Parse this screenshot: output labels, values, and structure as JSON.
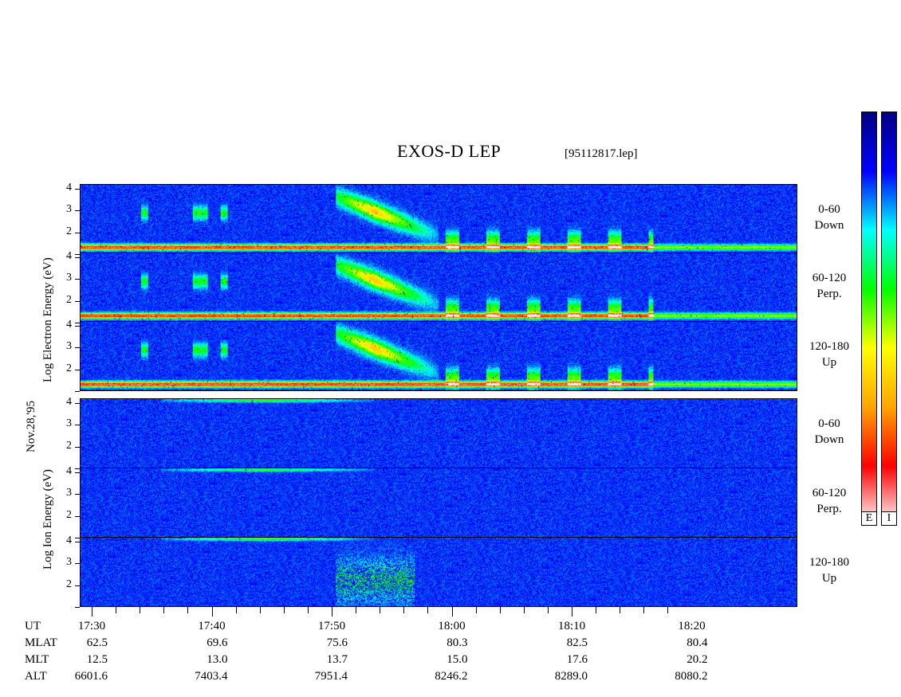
{
  "title": "EXOS-D LEP",
  "filename": "[95112817.lep]",
  "date_label": "Nov.28,'95",
  "electron_ylabel": "Log   Electron   Energy (eV)",
  "ion_ylabel": "Log    Ion   Energy (eV)",
  "colors": {
    "background": "#000080",
    "colormap": [
      "#ffffff",
      "#ff0000",
      "#ffa500",
      "#ffff00",
      "#00ff00",
      "#00ffff",
      "#0000ff",
      "#000080"
    ]
  },
  "colorbar": {
    "labels": [
      "E",
      "I"
    ]
  },
  "chart_data": {
    "type": "heatmap",
    "title": "EXOS-D LEP",
    "xlabel": "UT",
    "x_ticks": [
      "17:30",
      "17:40",
      "17:50",
      "18:00",
      "18:10",
      "18:20"
    ],
    "ylabel_units": "Log Energy (eV)",
    "y_ticks": [
      "1",
      "2",
      "3",
      "4"
    ],
    "ylim": [
      1,
      4.2
    ],
    "panels": [
      {
        "species": "Electron",
        "pitch_angle": "0-60",
        "direction": "Down"
      },
      {
        "species": "Electron",
        "pitch_angle": "60-120",
        "direction": "Perp."
      },
      {
        "species": "Electron",
        "pitch_angle": "120-180",
        "direction": "Up"
      },
      {
        "species": "Ion",
        "pitch_angle": "0-60",
        "direction": "Down"
      },
      {
        "species": "Ion",
        "pitch_angle": "60-120",
        "direction": "Perp."
      },
      {
        "species": "Ion",
        "pitch_angle": "120-180",
        "direction": "Up"
      }
    ],
    "ephemeris": {
      "rows": [
        "UT",
        "MLAT",
        "MLT",
        "ALT"
      ],
      "UT": [
        "17:30",
        "17:40",
        "17:50",
        "18:00",
        "18:10",
        "18:20"
      ],
      "MLAT": [
        "62.5",
        "69.6",
        "75.6",
        "80.3",
        "82.5",
        "80.4"
      ],
      "MLT": [
        "12.5",
        "13.0",
        "13.7",
        "15.0",
        "17.6",
        "20.2"
      ],
      "ALT": [
        "6601.6",
        "7403.4",
        "7951.4",
        "8246.2",
        "8289.0",
        "8080.2"
      ]
    }
  }
}
